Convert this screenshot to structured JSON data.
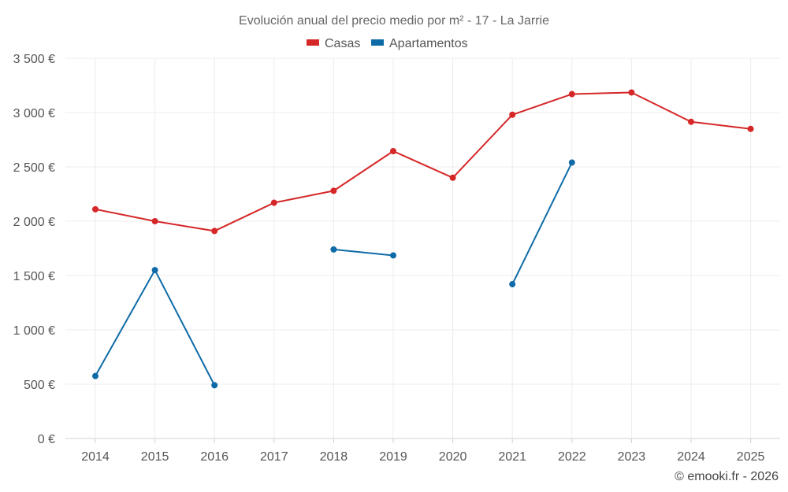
{
  "chart_data": {
    "type": "line",
    "title": "Evolución anual del precio medio por m² - 17 - La Jarrie",
    "x": [
      "2014",
      "2015",
      "2016",
      "2017",
      "2018",
      "2019",
      "2020",
      "2021",
      "2022",
      "2023",
      "2024",
      "2025"
    ],
    "ylim": [
      0,
      3500
    ],
    "yticks": [
      0,
      500,
      1000,
      1500,
      2000,
      2500,
      3000,
      3500
    ],
    "ytick_labels": [
      "0 €",
      "500 €",
      "1 000 €",
      "1 500 €",
      "2 000 €",
      "2 500 €",
      "3 000 €",
      "3 500 €"
    ],
    "grid": true,
    "legend_position": "top-center",
    "series": [
      {
        "name": "Casas",
        "color": "#d62728",
        "values": [
          2110,
          2000,
          1910,
          2170,
          2280,
          2645,
          2400,
          2980,
          3170,
          3185,
          2915,
          2850
        ]
      },
      {
        "name": "Apartamentos",
        "color": "#0f6ba8",
        "values": [
          575,
          1550,
          490,
          null,
          1740,
          1685,
          null,
          1420,
          2540,
          null,
          null,
          null
        ]
      }
    ]
  },
  "credit": "© emooki.fr - 2026"
}
